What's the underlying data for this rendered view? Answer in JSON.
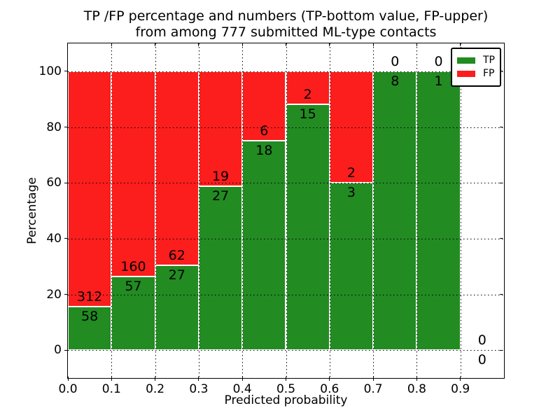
{
  "figure": {
    "title_line1": "TP /FP percentage and numbers (TP-bottom value, FP-upper)",
    "title_line2": "from among 777 submitted ML-type contacts"
  },
  "legend": {
    "items": [
      {
        "label": "TP",
        "color": "#228b22"
      },
      {
        "label": "FP",
        "color": "#fc1d1d"
      }
    ]
  },
  "chart_data": {
    "type": "bar",
    "subtype": "stacked-percentage-histogram",
    "title": "TP /FP percentage and numbers (TP-bottom value, FP-upper) from among 777 submitted ML-type contacts",
    "xlabel": "Predicted probability",
    "ylabel": "Percentage",
    "total_contacts": 777,
    "x_ticks": [
      "0.0",
      "0.1",
      "0.2",
      "0.3",
      "0.4",
      "0.5",
      "0.6",
      "0.7",
      "0.8",
      "0.9"
    ],
    "y_ticks": [
      "0",
      "20",
      "40",
      "60",
      "80",
      "100"
    ],
    "xlim": [
      0.0,
      1.0
    ],
    "ylim": [
      -10,
      110
    ],
    "grid": true,
    "grid_style": "dotted",
    "legend_position": "upper right",
    "colors": {
      "tp": "#228b22",
      "fp": "#fc1d1d",
      "bar_edge": "#ffffff"
    },
    "bins": [
      {
        "range": [
          0.0,
          0.1
        ],
        "tp": 58,
        "fp": 312,
        "tp_pct": 15.7
      },
      {
        "range": [
          0.1,
          0.2
        ],
        "tp": 57,
        "fp": 160,
        "tp_pct": 26.3
      },
      {
        "range": [
          0.2,
          0.3
        ],
        "tp": 27,
        "fp": 62,
        "tp_pct": 30.3
      },
      {
        "range": [
          0.3,
          0.4
        ],
        "tp": 27,
        "fp": 19,
        "tp_pct": 58.7
      },
      {
        "range": [
          0.4,
          0.5
        ],
        "tp": 18,
        "fp": 6,
        "tp_pct": 75.0
      },
      {
        "range": [
          0.5,
          0.6
        ],
        "tp": 15,
        "fp": 2,
        "tp_pct": 88.2
      },
      {
        "range": [
          0.6,
          0.7
        ],
        "tp": 3,
        "fp": 2,
        "tp_pct": 60.0
      },
      {
        "range": [
          0.7,
          0.8
        ],
        "tp": 8,
        "fp": 0,
        "tp_pct": 100.0
      },
      {
        "range": [
          0.8,
          0.9
        ],
        "tp": 1,
        "fp": 0,
        "tp_pct": 100.0
      },
      {
        "range": [
          0.9,
          1.0
        ],
        "tp": 0,
        "fp": 0,
        "tp_pct": 0.0
      }
    ],
    "series": [
      {
        "name": "TP",
        "color": "#228b22",
        "values": [
          58,
          57,
          27,
          27,
          18,
          15,
          3,
          8,
          1,
          0
        ]
      },
      {
        "name": "FP",
        "color": "#fc1d1d",
        "values": [
          312,
          160,
          62,
          19,
          6,
          2,
          2,
          0,
          0,
          0
        ]
      }
    ]
  }
}
